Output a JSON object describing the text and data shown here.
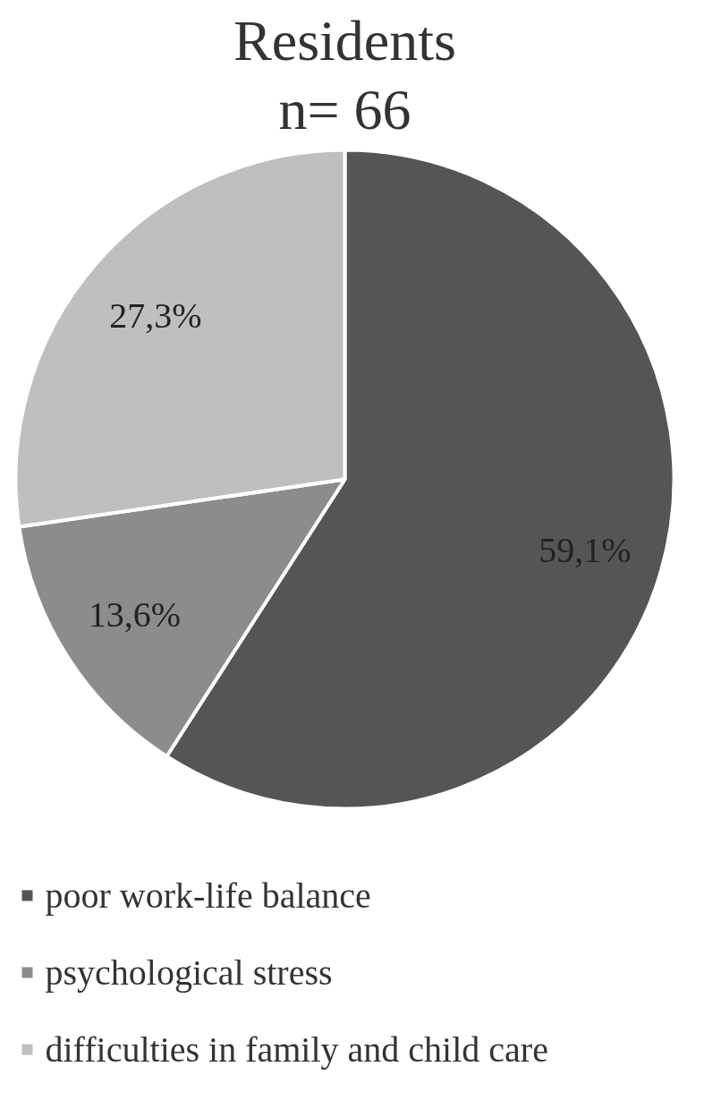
{
  "chart_data": {
    "type": "pie",
    "title": "Residents",
    "subtitle": "n= 66",
    "categories": [
      "poor work-life balance",
      "psychological stress",
      "difficulties in family and child care"
    ],
    "values": [
      59.1,
      13.6,
      27.3
    ],
    "colors": [
      "#555555",
      "#8c8c8c",
      "#bfbfbf"
    ],
    "value_labels": [
      "59,1%",
      "13,6%",
      "27,3%"
    ],
    "legend": "bottom"
  }
}
